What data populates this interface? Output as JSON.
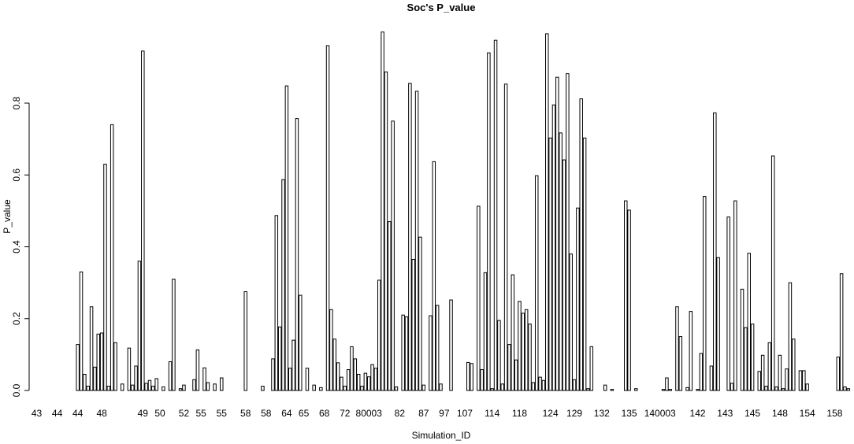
{
  "chart_data": {
    "type": "bar",
    "title": "Soc's P_value",
    "xlabel": "Simulation_ID",
    "ylabel": "P_value",
    "color": "#ffffff",
    "edgecolor": "#000000",
    "categories": [
      null,
      "43",
      null,
      null,
      null,
      null,
      null,
      "44",
      null,
      null,
      null,
      null,
      null,
      "44",
      null,
      null,
      null,
      null,
      null,
      null,
      "48",
      null,
      null,
      null,
      null,
      null,
      null,
      null,
      null,
      null,
      null,
      null,
      "49",
      null,
      null,
      null,
      null,
      "50",
      null,
      null,
      null,
      null,
      null,
      null,
      "52",
      null,
      null,
      null,
      null,
      "55",
      null,
      null,
      null,
      null,
      null,
      "55",
      null,
      null,
      null,
      null,
      null,
      null,
      "58",
      null,
      null,
      null,
      null,
      null,
      "58",
      null,
      null,
      null,
      null,
      null,
      "64",
      null,
      null,
      null,
      null,
      "65",
      null,
      null,
      null,
      null,
      null,
      "68",
      null,
      null,
      null,
      null,
      null,
      "72",
      null,
      null,
      null,
      null,
      null,
      null,
      "80003",
      null,
      null,
      null,
      null,
      null,
      null,
      null,
      null,
      "82",
      null,
      null,
      null,
      null,
      null,
      null,
      "87",
      null,
      null,
      null,
      null,
      null,
      "97",
      null,
      null,
      null,
      null,
      null,
      "107",
      null,
      null,
      null,
      null,
      null,
      null,
      null,
      "114",
      null,
      null,
      null,
      null,
      null,
      null,
      null,
      "118",
      null,
      null,
      null,
      null,
      null,
      null,
      null,
      null,
      "124",
      null,
      null,
      null,
      null,
      null,
      null,
      "129",
      null,
      null,
      null,
      null,
      null,
      null,
      null,
      "132",
      null,
      null,
      null,
      null,
      null,
      null,
      null,
      "135",
      null,
      null,
      null,
      null,
      null,
      null,
      null,
      null,
      "140003",
      null,
      null,
      null,
      null,
      null,
      null,
      null,
      null,
      null,
      null,
      "142",
      null,
      null,
      null,
      null,
      null,
      null,
      null,
      "143",
      null,
      null,
      null,
      null,
      null,
      null,
      null,
      "145",
      null,
      null,
      null,
      null,
      null,
      null,
      null,
      "148",
      null,
      null,
      null,
      null,
      null,
      null,
      null,
      "154",
      null,
      null,
      null,
      null,
      null,
      null,
      null,
      "158",
      null,
      null,
      null,
      null
    ],
    "values": [
      0,
      0,
      0,
      0,
      0,
      0,
      0,
      0,
      0,
      0,
      0,
      0,
      0,
      0.128,
      0.33,
      0.045,
      0.012,
      0.233,
      0.065,
      0.157,
      0.16,
      0.63,
      0.012,
      0.74,
      0.133,
      0,
      0.018,
      0,
      0.118,
      0.015,
      0.068,
      0.36,
      0.945,
      0.02,
      0.028,
      0.012,
      0.033,
      0,
      0.01,
      0,
      0.08,
      0.31,
      0,
      0.005,
      0.015,
      0,
      0,
      0.03,
      0.113,
      0,
      0.063,
      0.022,
      0,
      0.018,
      0,
      0.035,
      0,
      0,
      0,
      0,
      0,
      0,
      0.275,
      0,
      0,
      0,
      0,
      0.012,
      0,
      0,
      0.088,
      0.487,
      0.177,
      0.587,
      0.848,
      0.062,
      0.14,
      0.757,
      0.265,
      0,
      0.062,
      0,
      0.015,
      0,
      0.008,
      0,
      0.96,
      0.225,
      0.143,
      0.077,
      0.037,
      0.012,
      0.058,
      0.122,
      0.088,
      0.045,
      0.012,
      0.048,
      0.038,
      0.072,
      0.062,
      0.307,
      0.998,
      0.887,
      0.47,
      0.75,
      0.01,
      0,
      0.21,
      0.205,
      0.855,
      0.365,
      0.833,
      0.427,
      0.015,
      0,
      0.208,
      0.637,
      0.237,
      0.018,
      0,
      0,
      0.252,
      0,
      0,
      0,
      0,
      0.078,
      0.075,
      0,
      0.513,
      0.058,
      0.328,
      0.94,
      0.005,
      0.975,
      0.195,
      0.018,
      0.853,
      0.128,
      0.322,
      0.085,
      0.248,
      0.215,
      0.225,
      0.185,
      0.022,
      0.598,
      0.037,
      0.028,
      0.993,
      0.703,
      0.795,
      0.872,
      0.717,
      0.642,
      0.882,
      0.38,
      0.03,
      0.508,
      0.812,
      0.703,
      0.005,
      0.122,
      0,
      0,
      0,
      0.015,
      0,
      0.003,
      0,
      0,
      0,
      0.528,
      0.502,
      0,
      0.005,
      0,
      0,
      0,
      0,
      0,
      0,
      0,
      0.003,
      0.035,
      0.003,
      0,
      0.233,
      0.15,
      0,
      0.008,
      0.22,
      0,
      0.003,
      0.103,
      0.54,
      0,
      0.068,
      0.773,
      0.37,
      0,
      0,
      0.483,
      0.02,
      0.528,
      0,
      0.282,
      0.175,
      0.382,
      0.185,
      0,
      0.053,
      0.098,
      0.012,
      0.133,
      0.653,
      0.01,
      0.098,
      0.005,
      0.06,
      0.3,
      0.143,
      0,
      0.055,
      0.055,
      0.018,
      0,
      0,
      0,
      0,
      0,
      0,
      0,
      0,
      0.093,
      0.325,
      0.01,
      0.005
    ],
    "ylim": [
      0,
      1.0
    ],
    "yticks": [
      {
        "value": 0,
        "label": "0.0"
      },
      {
        "value": 0.2,
        "label": "0.2"
      },
      {
        "value": 0.4,
        "label": "0.4"
      },
      {
        "value": 0.6,
        "label": "0.6"
      },
      {
        "value": 0.8,
        "label": "0.8"
      }
    ]
  }
}
